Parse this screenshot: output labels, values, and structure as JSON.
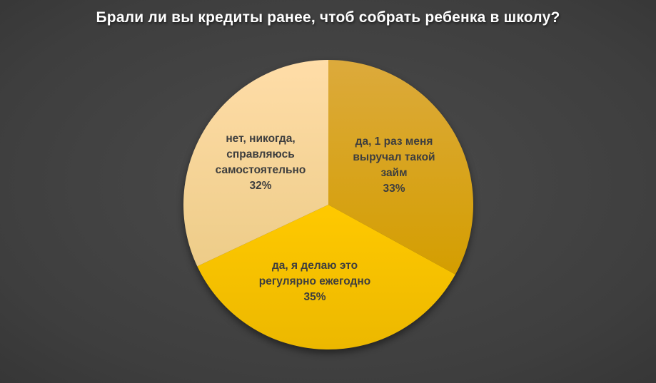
{
  "title_bar": {
    "title": "Брали ли вы кредиты ранее, чтоб собрать ребенка в школу?"
  },
  "colors": {
    "background_center": "#4b4b4b",
    "background_edge": "#242424",
    "title_text": "#ffffff",
    "label_text": "#3e3e3e"
  },
  "chart_data": {
    "type": "pie",
    "title": "Брали ли вы кредиты ранее, чтоб собрать ребенка в школу?",
    "legend": "none",
    "start_angle_deg": -90,
    "direction": "clockwise",
    "slices": [
      {
        "label": "да, 1 раз меня выручал такой займ",
        "label_lines": [
          "да, 1 раз меня",
          "выручал такой",
          "займ"
        ],
        "value": 33,
        "pct_label": "33%",
        "color_top": "#dcaa3c",
        "color_bottom": "#d49e00"
      },
      {
        "label": "да, я делаю это регулярно ежегодно",
        "label_lines": [
          "да, я делаю это",
          "регулярно ежегодно"
        ],
        "value": 35,
        "pct_label": "35%",
        "color_top": "#ffc900",
        "color_bottom": "#ecb800"
      },
      {
        "label": "нет, никогда, справляюсь самостоятельно",
        "label_lines": [
          "нет, никогда,",
          "справляюсь",
          "самостоятельно"
        ],
        "value": 32,
        "pct_label": "32%",
        "color_top": "#ffdda8",
        "color_bottom": "#edcc88"
      }
    ]
  }
}
